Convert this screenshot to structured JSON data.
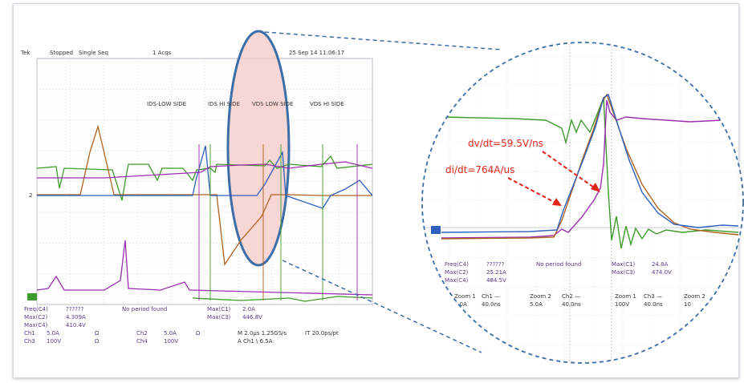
{
  "header": {
    "brand": "Tek",
    "status": "Stopped",
    "mode": "Single Seq",
    "acqs": "1 Acqs",
    "timestamp": "25 Sep 14 11:06:17"
  },
  "region_labels": [
    "IDS-LOW SIDE",
    "IDS HI SIDE",
    "VDS LOW SIDE",
    "VDS HI SIDE"
  ],
  "left_meas": {
    "rows": [
      [
        "Freq(C4)",
        "??????",
        "No period found",
        "Max(C1)",
        "2.0A"
      ],
      [
        "Max(C2)",
        "4.309A",
        "",
        "Max(C3)",
        "446.8V"
      ],
      [
        "Max(C4)",
        "410.4V",
        "",
        "",
        ""
      ]
    ]
  },
  "channels": {
    "ch1": "Ch1",
    "ch1_scale": "5.0A",
    "ch2": "Ch2",
    "ch2_scale": "5.0A",
    "ch3": "Ch3",
    "ch3_scale": "100V",
    "ch4": "Ch4",
    "ch4_scale": "100V",
    "ohm": "Ω",
    "timebase": "M 2.0μs 1.25GS/s",
    "trigger": "A Ch1 \\ 6.5A",
    "it": "IT 20.0ps/pt"
  },
  "zoom_meas": {
    "rows": [
      [
        "Freq(C4)",
        "??????",
        "No period found",
        "Max(C1)",
        "24.8A"
      ],
      [
        "Max(C2)",
        "25.21A",
        "",
        "Max(C3)",
        "474.0V"
      ],
      [
        "Max(C4)",
        "484.5V",
        "",
        "",
        ""
      ]
    ],
    "zoom_row": [
      "Zoom 1",
      "Ch1 —",
      "Zoom 2",
      "Ch2 —",
      "Zoom 1",
      "Ch3 —",
      "Zoom 2"
    ],
    "scale_row": [
      "5.0A",
      "40.0ns",
      "5.0A",
      "40.0ns",
      "100V",
      "40.0ns",
      "10"
    ]
  },
  "annotations": {
    "dvdt": "dv/dt=59.5V/ns",
    "didt": "di/dt=764A/us"
  },
  "colors": {
    "green": "#3f9a2c",
    "purple": "#9b2fb0",
    "blue": "#2f5fbf",
    "brown": "#b0621f",
    "grid": "#c9ccd3",
    "highlight": "#f5c4c0",
    "outline": "#3b6ea8",
    "annotation": "#e2231a"
  },
  "chart_data": {
    "type": "line",
    "title": "",
    "xlabel": "",
    "ylabel": "",
    "series": [
      {
        "name": "Ch1",
        "color": "green"
      },
      {
        "name": "Ch2",
        "color": "blue"
      },
      {
        "name": "Ch3",
        "color": "purple"
      },
      {
        "name": "Ch4",
        "color": "brown"
      }
    ],
    "grid": true
  }
}
